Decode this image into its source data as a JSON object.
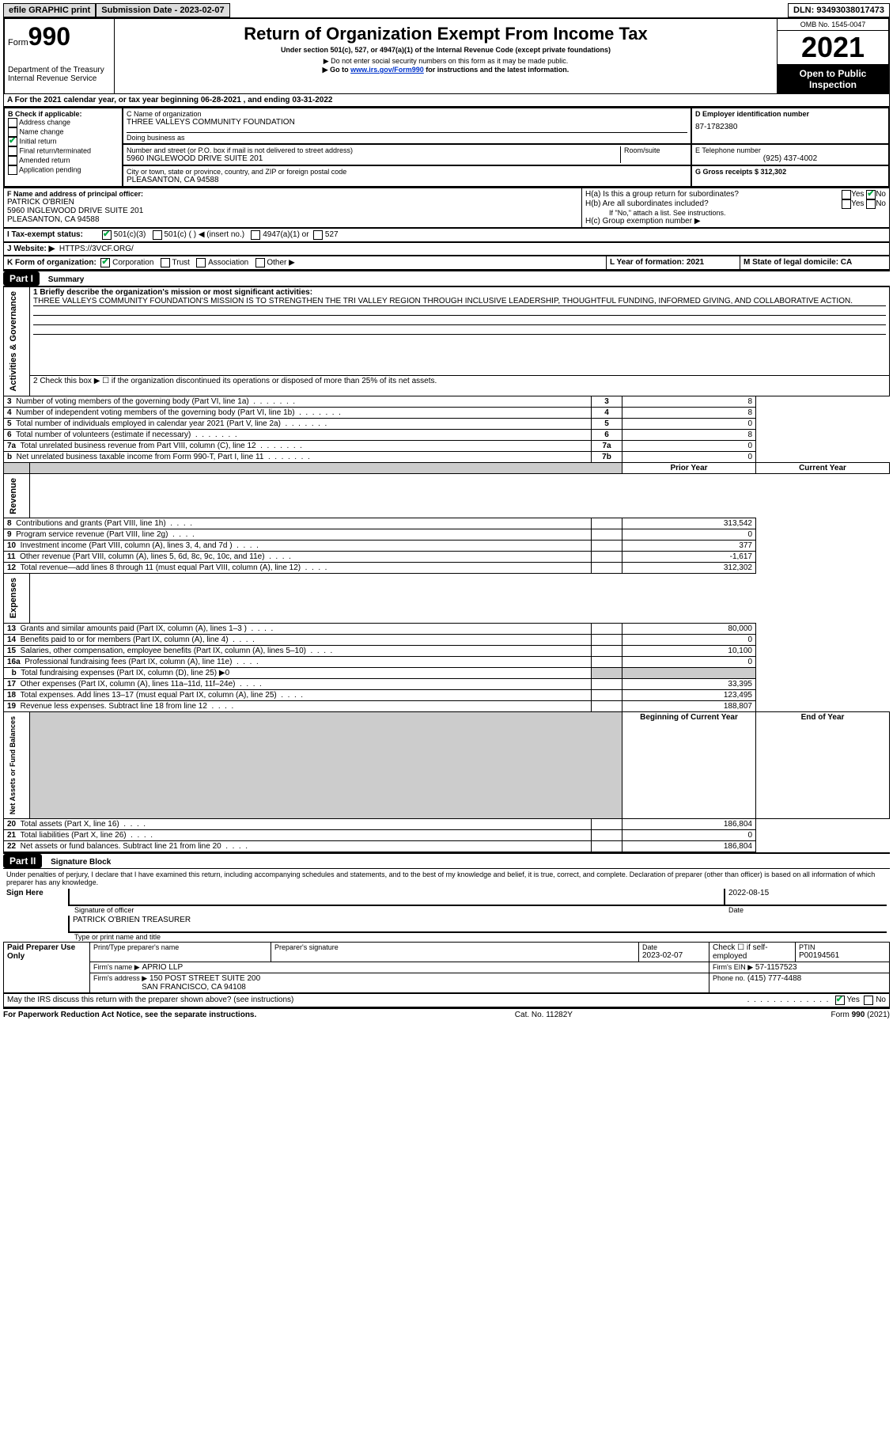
{
  "topbar": {
    "efile": "efile GRAPHIC print",
    "submission_label": "Submission Date - 2023-02-07",
    "dln_label": "DLN: 93493038017473"
  },
  "header": {
    "form_label": "Form",
    "form_number": "990",
    "dept": "Department of the Treasury",
    "irs": "Internal Revenue Service",
    "title": "Return of Organization Exempt From Income Tax",
    "subtitle": "Under section 501(c), 527, or 4947(a)(1) of the Internal Revenue Code (except private foundations)",
    "note1": "▶ Do not enter social security numbers on this form as it may be made public.",
    "note2_pre": "▶ Go to ",
    "note2_link": "www.irs.gov/Form990",
    "note2_post": " for instructions and the latest information.",
    "omb": "OMB No. 1545-0047",
    "year": "2021",
    "open": "Open to Public Inspection"
  },
  "periodA": {
    "text": "A For the 2021 calendar year, or tax year beginning 06-28-2021   , and ending 03-31-2022"
  },
  "sectionB": {
    "label": "B Check if applicable:",
    "items": [
      "Address change",
      "Name change",
      "Initial return",
      "Final return/terminated",
      "Amended return",
      "Application pending"
    ],
    "checked_index": 2
  },
  "sectionC": {
    "name_label": "C Name of organization",
    "name": "THREE VALLEYS COMMUNITY FOUNDATION",
    "dba_label": "Doing business as",
    "addr_label": "Number and street (or P.O. box if mail is not delivered to street address)",
    "room_label": "Room/suite",
    "addr": "5960 INGLEWOOD DRIVE SUITE 201",
    "city_label": "City or town, state or province, country, and ZIP or foreign postal code",
    "city": "PLEASANTON, CA  94588"
  },
  "sectionD": {
    "label": "D Employer identification number",
    "value": "87-1782380"
  },
  "sectionE": {
    "label": "E Telephone number",
    "value": "(925) 437-4002"
  },
  "sectionG": {
    "label": "G Gross receipts $ 312,302"
  },
  "sectionF": {
    "label": "F Name and address of principal officer:",
    "name": "PATRICK O'BRIEN",
    "addr1": "5960 INGLEWOOD DRIVE SUITE 201",
    "addr2": "PLEASANTON, CA  94588"
  },
  "sectionH": {
    "ha": "H(a)  Is this a group return for subordinates?",
    "hb": "H(b)  Are all subordinates included?",
    "hb_note": "If \"No,\" attach a list. See instructions.",
    "hc": "H(c)  Group exemption number ▶",
    "yes": "Yes",
    "no": "No"
  },
  "sectionI": {
    "label": "I   Tax-exempt status:",
    "opts": [
      "501(c)(3)",
      "501(c) (  ) ◀ (insert no.)",
      "4947(a)(1) or",
      "527"
    ]
  },
  "sectionJ": {
    "label": "J   Website: ▶",
    "value": "HTTPS://3VCF.ORG/"
  },
  "sectionK": {
    "label": "K Form of organization:",
    "opts": [
      "Corporation",
      "Trust",
      "Association",
      "Other ▶"
    ]
  },
  "sectionL": {
    "label": "L Year of formation: 2021"
  },
  "sectionM": {
    "label": "M State of legal domicile: CA"
  },
  "part1": {
    "title": "Part I",
    "heading": "Summary",
    "q1_label": "1  Briefly describe the organization's mission or most significant activities:",
    "q1_text": "THREE VALLEYS COMMUNITY FOUNDATION'S MISSION IS TO STRENGTHEN THE TRI VALLEY REGION THROUGH INCLUSIVE LEADERSHIP, THOUGHTFUL FUNDING, INFORMED GIVING, AND COLLABORATIVE ACTION.",
    "q2": "2  Check this box ▶ ☐  if the organization discontinued its operations or disposed of more than 25% of its net assets.",
    "lines_top": [
      {
        "n": "3",
        "label": "Number of voting members of the governing body (Part VI, line 1a)",
        "box": "3",
        "val": "8"
      },
      {
        "n": "4",
        "label": "Number of independent voting members of the governing body (Part VI, line 1b)",
        "box": "4",
        "val": "8"
      },
      {
        "n": "5",
        "label": "Total number of individuals employed in calendar year 2021 (Part V, line 2a)",
        "box": "5",
        "val": "0"
      },
      {
        "n": "6",
        "label": "Total number of volunteers (estimate if necessary)",
        "box": "6",
        "val": "8"
      },
      {
        "n": "7a",
        "label": "Total unrelated business revenue from Part VIII, column (C), line 12",
        "box": "7a",
        "val": "0"
      },
      {
        "n": "b",
        "label": "Net unrelated business taxable income from Form 990-T, Part I, line 11",
        "box": "7b",
        "val": "0"
      }
    ],
    "col_prior": "Prior Year",
    "col_current": "Current Year",
    "revenue": [
      {
        "n": "8",
        "label": "Contributions and grants (Part VIII, line 1h)",
        "cur": "313,542"
      },
      {
        "n": "9",
        "label": "Program service revenue (Part VIII, line 2g)",
        "cur": "0"
      },
      {
        "n": "10",
        "label": "Investment income (Part VIII, column (A), lines 3, 4, and 7d )",
        "cur": "377"
      },
      {
        "n": "11",
        "label": "Other revenue (Part VIII, column (A), lines 5, 6d, 8c, 9c, 10c, and 11e)",
        "cur": "-1,617"
      },
      {
        "n": "12",
        "label": "Total revenue—add lines 8 through 11 (must equal Part VIII, column (A), line 12)",
        "cur": "312,302"
      }
    ],
    "expenses": [
      {
        "n": "13",
        "label": "Grants and similar amounts paid (Part IX, column (A), lines 1–3 )",
        "cur": "80,000"
      },
      {
        "n": "14",
        "label": "Benefits paid to or for members (Part IX, column (A), line 4)",
        "cur": "0"
      },
      {
        "n": "15",
        "label": "Salaries, other compensation, employee benefits (Part IX, column (A), lines 5–10)",
        "cur": "10,100"
      },
      {
        "n": "16a",
        "label": "Professional fundraising fees (Part IX, column (A), line 11e)",
        "cur": "0"
      },
      {
        "n": "b",
        "label": "Total fundraising expenses (Part IX, column (D), line 25) ▶0",
        "grey": true
      },
      {
        "n": "17",
        "label": "Other expenses (Part IX, column (A), lines 11a–11d, 11f–24e)",
        "cur": "33,395"
      },
      {
        "n": "18",
        "label": "Total expenses. Add lines 13–17 (must equal Part IX, column (A), line 25)",
        "cur": "123,495"
      },
      {
        "n": "19",
        "label": "Revenue less expenses. Subtract line 18 from line 12",
        "cur": "188,807"
      }
    ],
    "col_begin": "Beginning of Current Year",
    "col_end": "End of Year",
    "netassets": [
      {
        "n": "20",
        "label": "Total assets (Part X, line 16)",
        "cur": "186,804"
      },
      {
        "n": "21",
        "label": "Total liabilities (Part X, line 26)",
        "cur": "0"
      },
      {
        "n": "22",
        "label": "Net assets or fund balances. Subtract line 21 from line 20",
        "cur": "186,804"
      }
    ],
    "vlabels": {
      "gov": "Activities & Governance",
      "rev": "Revenue",
      "exp": "Expenses",
      "net": "Net Assets or Fund Balances"
    }
  },
  "part2": {
    "title": "Part II",
    "heading": "Signature Block",
    "declaration": "Under penalties of perjury, I declare that I have examined this return, including accompanying schedules and statements, and to the best of my knowledge and belief, it is true, correct, and complete. Declaration of preparer (other than officer) is based on all information of which preparer has any knowledge.",
    "sign_here": "Sign Here",
    "sig_officer": "Signature of officer",
    "sig_date": "2022-08-15",
    "date_label": "Date",
    "officer_name": "PATRICK O'BRIEN  TREASURER",
    "type_label": "Type or print name and title",
    "paid": "Paid Preparer Use Only",
    "prep_name_label": "Print/Type preparer's name",
    "prep_sig_label": "Preparer's signature",
    "prep_date_label": "Date",
    "prep_date": "2023-02-07",
    "check_self": "Check ☐ if self-employed",
    "ptin_label": "PTIN",
    "ptin": "P00194561",
    "firm_name_label": "Firm's name    ▶",
    "firm_name": "APRIO LLP",
    "firm_ein_label": "Firm's EIN ▶",
    "firm_ein": "57-1157523",
    "firm_addr_label": "Firm's address ▶",
    "firm_addr1": "150 POST STREET SUITE 200",
    "firm_addr2": "SAN FRANCISCO, CA  94108",
    "phone_label": "Phone no.",
    "phone": "(415) 777-4488",
    "discuss": "May the IRS discuss this return with the preparer shown above? (see instructions)",
    "yes": "Yes",
    "no": "No"
  },
  "footer": {
    "left": "For Paperwork Reduction Act Notice, see the separate instructions.",
    "mid": "Cat. No. 11282Y",
    "right": "Form 990 (2021)"
  }
}
